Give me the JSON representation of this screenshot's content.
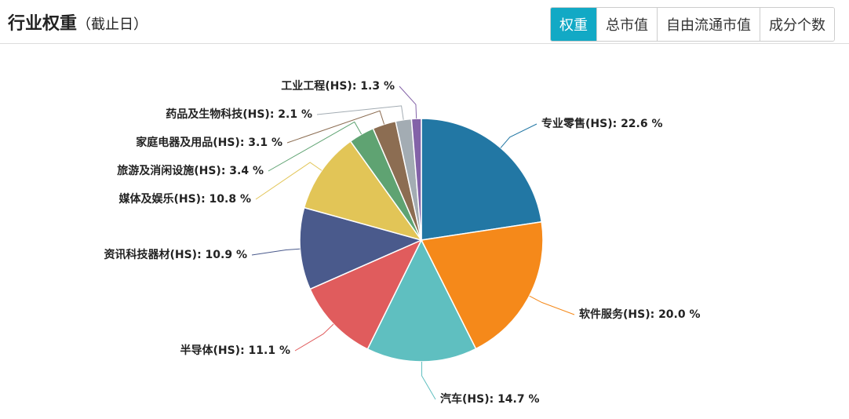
{
  "header": {
    "title": "行业权重",
    "subtitle": "（截止日）",
    "tabs": [
      "权重",
      "总市值",
      "自由流通市值",
      "成分个数"
    ],
    "active_tab": 0
  },
  "chart_data": {
    "type": "pie",
    "values": [
      22.6,
      20.0,
      14.7,
      11.1,
      10.9,
      10.8,
      3.4,
      3.1,
      2.1,
      1.3
    ],
    "value_labels": [
      "专业零售(HS): 22.6 %",
      "软件服务(HS): 20.0 %",
      "汽车(HS): 14.7 %",
      "半导体(HS): 11.1 %",
      "资讯科技器材(HS): 10.9 %",
      "媒体及娱乐(HS): 10.8 %",
      "旅游及消闲设施(HS): 3.4 %",
      "家庭电器及用品(HS): 3.1 %",
      "药品及生物科技(HS): 2.1 %",
      "工业工程(HS): 1.3 %"
    ],
    "colors": [
      "#2277a4",
      "#f5891a",
      "#5fbfc0",
      "#e05c5d",
      "#4a5a8c",
      "#e2c557",
      "#5fa372",
      "#8c6d52",
      "#a3acb3",
      "#8362a8"
    ]
  }
}
